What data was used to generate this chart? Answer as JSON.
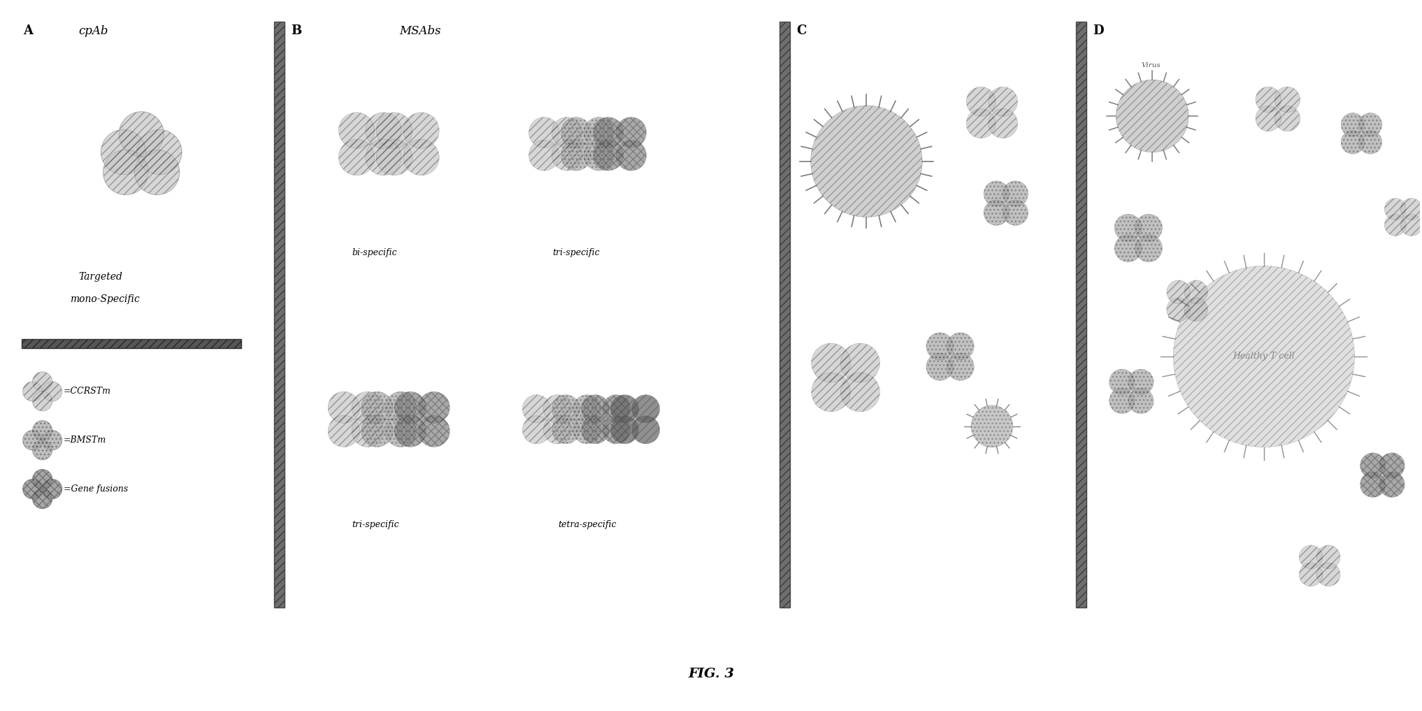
{
  "title": "FIG. 3",
  "bg_color": "#ffffff",
  "section_A_label": "A",
  "section_A_title": "cpAb",
  "section_A_subtitle": "Targeted\nmono-Specific",
  "section_B_label": "B",
  "section_B_title": "MSAbs",
  "section_C_label": "C",
  "section_D_label": "D",
  "bi_specific": "bi-specific",
  "tri_specific_top": "tri-specific",
  "tri_specific_bot": "tri-specific",
  "tetra_specific": "tetra-specific",
  "legend_items": [
    "=CCRSTm",
    "=BMSTm",
    "=Gene fusions"
  ],
  "divider_color": "#555555",
  "blob_light": "#c8c8c8",
  "blob_mid": "#a8a8a8",
  "blob_dark": "#888888",
  "blob_darkest": "#666666",
  "fig_label_size": 13,
  "fig_title_size": 12,
  "label_size": 9,
  "legend_size": 9
}
